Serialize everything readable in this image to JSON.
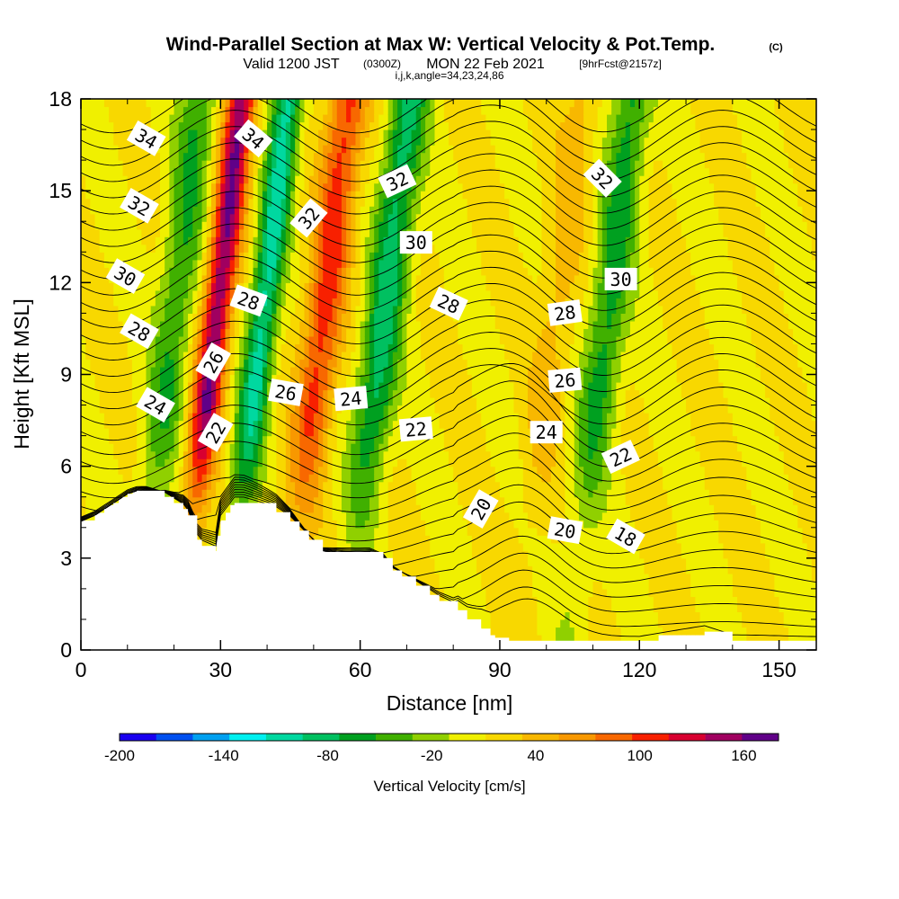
{
  "header": {
    "title": "Wind-Parallel Section at Max W: Vertical Velocity & Pot.Temp.",
    "title_tag": "(C)",
    "subtitle_a": "Valid 1200 JST",
    "subtitle_b": "(0300Z)",
    "subtitle_c": "MON 22 Feb 2021",
    "subtitle_d": "[9hrFcst@2157z]",
    "params": "i,j,k,angle=34,23,24,86"
  },
  "chart_data": {
    "type": "heatmap",
    "xlabel": "Distance [nm]",
    "ylabel": "Height [Kft MSL]",
    "xlim": [
      0,
      158
    ],
    "ylim": [
      0,
      18
    ],
    "x_ticks": [
      0,
      30,
      60,
      90,
      120,
      150
    ],
    "y_ticks": [
      0,
      3,
      6,
      9,
      12,
      15,
      18
    ],
    "grid": false,
    "colorbar": {
      "label": "Vertical Velocity [cm/s]",
      "min": -200,
      "max": 180,
      "step": 20,
      "tick_values": [
        -200,
        -140,
        -80,
        -20,
        40,
        100,
        160
      ],
      "tick_labels": [
        "-200",
        "-140",
        "-80",
        "-20",
        "40",
        "100",
        "160"
      ],
      "colors": [
        "#1a00f0",
        "#0050f0",
        "#00a0f0",
        "#00f0f0",
        "#00d8a0",
        "#00c060",
        "#00a020",
        "#40b000",
        "#90d000",
        "#f0f000",
        "#f8d800",
        "#f8b800",
        "#f89800",
        "#f86800",
        "#f82000",
        "#d80030",
        "#a00060",
        "#600088"
      ]
    },
    "w_field": {
      "description_units": "cm/s",
      "updraft_columns": [
        {
          "x": 27,
          "w": 140
        },
        {
          "x": 50,
          "w": 90
        },
        {
          "x": 100,
          "w": 30
        }
      ],
      "downdraft_columns": [
        {
          "x": 18,
          "w": -60
        },
        {
          "x": 37,
          "w": -110
        },
        {
          "x": 63,
          "w": -90
        },
        {
          "x": 111,
          "w": -70
        }
      ],
      "background_w": 0
    },
    "terrain": {
      "x": [
        0,
        3,
        5,
        7,
        9,
        10,
        12,
        14,
        18,
        20,
        22,
        23,
        25,
        26,
        29,
        30,
        33,
        35,
        42,
        45,
        47,
        49,
        52,
        57,
        62,
        65,
        67,
        69,
        72,
        75,
        77,
        81,
        83,
        86,
        88,
        92,
        100,
        120,
        134,
        140,
        150,
        158
      ],
      "height_kft": [
        4.2,
        4.4,
        4.6,
        4.8,
        5.0,
        5.1,
        5.2,
        5.2,
        5.0,
        4.8,
        4.6,
        4.4,
        3.6,
        3.4,
        3.2,
        4.2,
        4.8,
        4.8,
        4.5,
        4.2,
        3.9,
        3.6,
        3.2,
        3.2,
        3.2,
        3.0,
        2.6,
        2.4,
        2.1,
        1.8,
        1.6,
        1.3,
        1.0,
        0.7,
        0.4,
        0.3,
        0.3,
        0.3,
        0.6,
        0.3,
        0.3,
        0.3
      ]
    },
    "isentropes": {
      "variable": "potential temperature",
      "contour_labels": [
        {
          "text": "34",
          "x": 14,
          "y": 16.7,
          "angle": 30
        },
        {
          "text": "34",
          "x": 37,
          "y": 16.7,
          "angle": 40
        },
        {
          "text": "32",
          "x": 12.5,
          "y": 14.5,
          "angle": 30
        },
        {
          "text": "32",
          "x": 49,
          "y": 14.1,
          "angle": -50
        },
        {
          "text": "32",
          "x": 68,
          "y": 15.3,
          "angle": -25
        },
        {
          "text": "32",
          "x": 112,
          "y": 15.4,
          "angle": 45
        },
        {
          "text": "30",
          "x": 9.5,
          "y": 12.2,
          "angle": 30
        },
        {
          "text": "30",
          "x": 72,
          "y": 13.3,
          "angle": 0
        },
        {
          "text": "30",
          "x": 116,
          "y": 12.1,
          "angle": 0
        },
        {
          "text": "28",
          "x": 12.5,
          "y": 10.4,
          "angle": 30
        },
        {
          "text": "28",
          "x": 36,
          "y": 11.4,
          "angle": 20
        },
        {
          "text": "28",
          "x": 79,
          "y": 11.3,
          "angle": 25
        },
        {
          "text": "28",
          "x": 104,
          "y": 11.0,
          "angle": -8
        },
        {
          "text": "26",
          "x": 28.5,
          "y": 9.4,
          "angle": -60
        },
        {
          "text": "26",
          "x": 44,
          "y": 8.4,
          "angle": 10
        },
        {
          "text": "26",
          "x": 104,
          "y": 8.8,
          "angle": -5
        },
        {
          "text": "24",
          "x": 16,
          "y": 8.0,
          "angle": 30
        },
        {
          "text": "24",
          "x": 58,
          "y": 8.2,
          "angle": -5
        },
        {
          "text": "24",
          "x": 100,
          "y": 7.1,
          "angle": 0
        },
        {
          "text": "22",
          "x": 29,
          "y": 7.1,
          "angle": -60
        },
        {
          "text": "22",
          "x": 72,
          "y": 7.2,
          "angle": -5
        },
        {
          "text": "22",
          "x": 116,
          "y": 6.3,
          "angle": -25
        },
        {
          "text": "20",
          "x": 86,
          "y": 4.6,
          "angle": -60
        },
        {
          "text": "20",
          "x": 104,
          "y": 3.9,
          "angle": 10
        },
        {
          "text": "18",
          "x": 117,
          "y": 3.7,
          "angle": 30
        }
      ]
    }
  }
}
